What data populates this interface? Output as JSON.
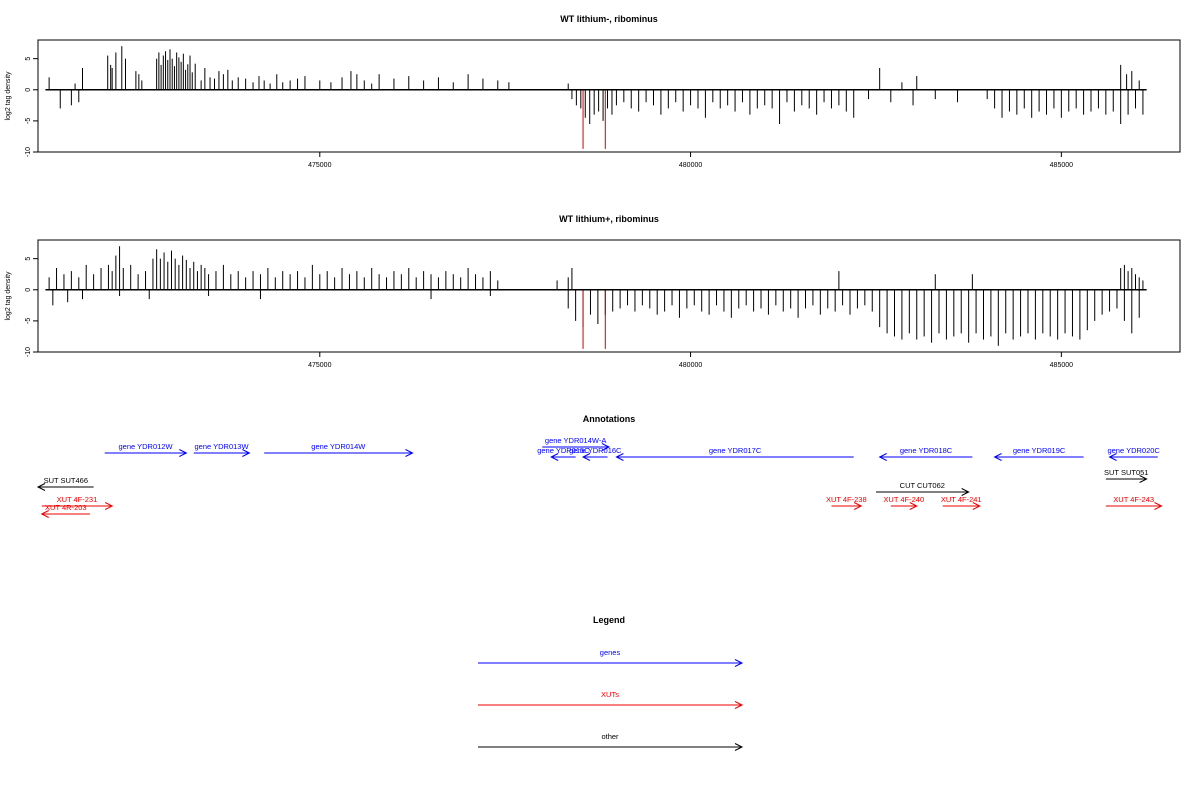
{
  "chart_data": [
    {
      "type": "bar",
      "title": "WT lithium-, ribominus",
      "ylabel": "log2 tag density",
      "xlabel": "",
      "xlim": [
        471200,
        486600
      ],
      "ylim": [
        -10,
        8
      ],
      "x_ticks": [
        475000,
        480000,
        485000
      ],
      "x_tick_labels": [
        "475000",
        "480000",
        "485000"
      ],
      "y_ticks": [
        -10,
        -5,
        0,
        5
      ],
      "y_tick_labels": [
        "-10",
        "-5",
        "0",
        "5"
      ],
      "baseline": [
        471300,
        486150
      ],
      "colors": {
        "bars": "#000000",
        "highlight": "#cc0000"
      },
      "plus_strand": {
        "x": [
          471350,
          471700,
          471800,
          472140,
          472180,
          472200,
          472250,
          472330,
          472380,
          472520,
          472560,
          472600,
          472800,
          472830,
          472860,
          472890,
          472920,
          472950,
          472980,
          473010,
          473040,
          473070,
          473100,
          473130,
          473160,
          473190,
          473220,
          473250,
          473280,
          473320,
          473400,
          473450,
          473520,
          473580,
          473640,
          473700,
          473760,
          473820,
          473900,
          474000,
          474100,
          474180,
          474250,
          474330,
          474420,
          474500,
          474600,
          474700,
          474800,
          475000,
          475150,
          475300,
          475420,
          475500,
          475600,
          475700,
          475800,
          476000,
          476200,
          476400,
          476600,
          476800,
          477000,
          477200,
          477400,
          477550,
          478350,
          482550,
          482850,
          483050,
          485800,
          485880,
          485950,
          486050
        ],
        "y": [
          2,
          1,
          3.5,
          5.5,
          4,
          3.5,
          6,
          7,
          5,
          3,
          2.5,
          1.5,
          5,
          6,
          4,
          5.5,
          6.2,
          4.8,
          6.5,
          5,
          3.8,
          6,
          5.2,
          4.5,
          5.8,
          3.2,
          4.1,
          5.5,
          2.8,
          4.2,
          1.5,
          3.5,
          2,
          1.8,
          3,
          2.5,
          3.2,
          1.5,
          2,
          1.8,
          1.2,
          2.2,
          1.5,
          1,
          2.5,
          1.2,
          1.5,
          1.8,
          2.2,
          1.5,
          1.2,
          2,
          3,
          2.5,
          1.5,
          1,
          2.5,
          1.8,
          2.2,
          1.5,
          2,
          1.2,
          2.5,
          1.8,
          1.5,
          1.2,
          1,
          3.5,
          1.2,
          2.2,
          4,
          2.5,
          3,
          1.5
        ]
      },
      "minus_strand": {
        "x": [
          471500,
          471650,
          471750,
          478400,
          478460,
          478520,
          478580,
          478640,
          478700,
          478760,
          478820,
          478880,
          478940,
          479000,
          479100,
          479200,
          479300,
          479400,
          479500,
          479600,
          479700,
          479800,
          479900,
          480000,
          480100,
          480200,
          480300,
          480400,
          480500,
          480600,
          480700,
          480800,
          480900,
          481000,
          481100,
          481200,
          481300,
          481400,
          481500,
          481600,
          481700,
          481800,
          481900,
          482000,
          482100,
          482200,
          482400,
          482700,
          483000,
          483300,
          483600,
          484000,
          484100,
          484200,
          484300,
          484400,
          484500,
          484600,
          484700,
          484800,
          484900,
          485000,
          485100,
          485200,
          485300,
          485400,
          485500,
          485600,
          485700,
          485800,
          485900,
          486000,
          486100
        ],
        "y": [
          -3,
          -2.5,
          -2,
          -1.5,
          -2.5,
          -3,
          -4.5,
          -5.5,
          -4,
          -3.5,
          -5,
          -3,
          -4,
          -2.5,
          -2,
          -3,
          -3.5,
          -2,
          -2.5,
          -4,
          -3,
          -2,
          -3.5,
          -2.5,
          -3,
          -4.5,
          -2,
          -3,
          -2.5,
          -3.5,
          -2,
          -4,
          -3,
          -2.5,
          -3,
          -5.5,
          -2,
          -3.5,
          -2.5,
          -3,
          -4,
          -2,
          -3,
          -2.5,
          -3.5,
          -4.5,
          -1.5,
          -2,
          -2.5,
          -1.5,
          -2,
          -1.5,
          -3,
          -4.5,
          -3.5,
          -4,
          -3,
          -4.5,
          -3.5,
          -4,
          -3,
          -4.5,
          -3.5,
          -3,
          -4,
          -3.5,
          -3,
          -4,
          -3.5,
          -5.5,
          -4,
          -3,
          -4
        ]
      },
      "highlight_bars": {
        "x": [
          478550,
          478850
        ],
        "y": [
          -9.5,
          -9.5
        ]
      }
    },
    {
      "type": "bar",
      "title": "WT lithium+, ribominus",
      "ylabel": "log2 tag density",
      "xlabel": "",
      "xlim": [
        471200,
        486600
      ],
      "ylim": [
        -10,
        8
      ],
      "x_ticks": [
        475000,
        480000,
        485000
      ],
      "x_tick_labels": [
        "475000",
        "480000",
        "485000"
      ],
      "y_ticks": [
        -10,
        -5,
        0,
        5
      ],
      "y_tick_labels": [
        "-10",
        "-5",
        "0",
        "5"
      ],
      "baseline": [
        471300,
        486150
      ],
      "colors": {
        "bars": "#000000",
        "highlight": "#cc0000"
      },
      "plus_strand": {
        "x": [
          471350,
          471450,
          471550,
          471650,
          471750,
          471850,
          471950,
          472050,
          472150,
          472200,
          472250,
          472300,
          472350,
          472450,
          472550,
          472650,
          472750,
          472800,
          472850,
          472900,
          472950,
          473000,
          473050,
          473100,
          473150,
          473200,
          473250,
          473300,
          473350,
          473400,
          473450,
          473500,
          473600,
          473700,
          473800,
          473900,
          474000,
          474100,
          474200,
          474300,
          474400,
          474500,
          474600,
          474700,
          474800,
          474900,
          475000,
          475100,
          475200,
          475300,
          475400,
          475500,
          475600,
          475700,
          475800,
          475900,
          476000,
          476100,
          476200,
          476300,
          476400,
          476500,
          476600,
          476700,
          476800,
          476900,
          477000,
          477100,
          477200,
          477300,
          477400,
          478200,
          478350,
          478400,
          482000,
          483300,
          483800,
          485800,
          485850,
          485900,
          485950,
          486000,
          486050,
          486100
        ],
        "y": [
          2,
          3.5,
          2.5,
          3,
          2,
          4,
          2.5,
          3.5,
          4,
          3,
          5.5,
          7,
          3.5,
          4,
          2.5,
          3,
          5,
          6.5,
          5,
          6,
          4.5,
          6.3,
          5,
          4,
          5.5,
          4.8,
          3.5,
          4.5,
          3,
          4,
          3.5,
          2.5,
          3,
          4,
          2.5,
          3,
          2,
          3,
          2.5,
          3.5,
          2,
          3,
          2.5,
          3,
          2,
          4,
          2.5,
          3,
          2,
          3.5,
          2.5,
          3,
          2,
          3.5,
          2.5,
          2,
          3,
          2.5,
          3.5,
          2,
          3,
          2.5,
          2,
          3,
          2.5,
          2,
          3.5,
          2.5,
          2,
          3,
          1.5,
          1.5,
          2,
          3.5,
          3,
          2.5,
          2.5,
          3.5,
          4,
          3,
          3.5,
          2.5,
          2,
          1.5
        ]
      },
      "minus_strand": {
        "x": [
          471400,
          471600,
          471800,
          472300,
          472700,
          473500,
          474200,
          476500,
          477300,
          478350,
          478450,
          478550,
          478650,
          478750,
          478850,
          478950,
          479050,
          479150,
          479250,
          479350,
          479450,
          479550,
          479650,
          479750,
          479850,
          479950,
          480050,
          480150,
          480250,
          480350,
          480450,
          480550,
          480650,
          480750,
          480850,
          480950,
          481050,
          481150,
          481250,
          481350,
          481450,
          481550,
          481650,
          481750,
          481850,
          481950,
          482050,
          482150,
          482250,
          482350,
          482450,
          482550,
          482650,
          482750,
          482850,
          482950,
          483050,
          483150,
          483250,
          483350,
          483450,
          483550,
          483650,
          483750,
          483850,
          483950,
          484050,
          484150,
          484250,
          484350,
          484450,
          484550,
          484650,
          484750,
          484850,
          484950,
          485050,
          485150,
          485250,
          485350,
          485450,
          485550,
          485650,
          485750,
          485850,
          485950,
          486050
        ],
        "y": [
          -2.5,
          -2,
          -1.5,
          -1,
          -1.5,
          -1,
          -1.5,
          -1.5,
          -1,
          -3,
          -5,
          -6,
          -4,
          -5.5,
          -4,
          -3.5,
          -3,
          -2.5,
          -3.5,
          -2.5,
          -3,
          -4,
          -3.5,
          -2.5,
          -4.5,
          -3,
          -2.5,
          -3.5,
          -4,
          -2.5,
          -3.5,
          -4.5,
          -3,
          -2.5,
          -3.5,
          -3,
          -4,
          -2.5,
          -3.5,
          -3,
          -4.5,
          -3,
          -2.5,
          -4,
          -3,
          -3.5,
          -2.5,
          -4,
          -3,
          -2.5,
          -3.5,
          -6,
          -7,
          -7.5,
          -8,
          -7,
          -8,
          -7.5,
          -8.5,
          -7,
          -8,
          -7.5,
          -7,
          -8.5,
          -7,
          -8,
          -7.5,
          -9,
          -7,
          -8,
          -7.5,
          -7,
          -8,
          -7,
          -7.5,
          -8,
          -7,
          -7.5,
          -8,
          -6.5,
          -5,
          -4,
          -3.5,
          -3,
          -5,
          -7,
          -4.5
        ]
      },
      "highlight_bars": {
        "x": [
          478550,
          478850
        ],
        "y": [
          -9.5,
          -9.5
        ]
      }
    }
  ],
  "annotations": {
    "title": "Annotations",
    "xlim": [
      471200,
      486600
    ],
    "features": [
      {
        "label": "gene YDR012W",
        "type": "gene",
        "strand": "+",
        "start": 472100,
        "end": 473200,
        "row": 0
      },
      {
        "label": "gene YDR013W",
        "type": "gene",
        "strand": "+",
        "start": 473300,
        "end": 474050,
        "row": 0
      },
      {
        "label": "gene YDR014W",
        "type": "gene",
        "strand": "+",
        "start": 474250,
        "end": 476250,
        "row": 0
      },
      {
        "label": "gene YDR014W-A",
        "type": "gene",
        "strand": "+",
        "start": 478000,
        "end": 478900,
        "row": -0.6
      },
      {
        "label": "gene YDR015C",
        "type": "gene",
        "strand": "-",
        "start": 478120,
        "end": 478450,
        "row": 0.4
      },
      {
        "label": "gene YDR016C",
        "type": "gene",
        "strand": "-",
        "start": 478550,
        "end": 478880,
        "row": 0.4
      },
      {
        "label": "gene YDR017C",
        "type": "gene",
        "strand": "-",
        "start": 479000,
        "end": 482200,
        "row": 0.4
      },
      {
        "label": "gene YDR018C",
        "type": "gene",
        "strand": "-",
        "start": 482550,
        "end": 483800,
        "row": 0.4
      },
      {
        "label": "gene YDR019C",
        "type": "gene",
        "strand": "-",
        "start": 484100,
        "end": 485300,
        "row": 0.4
      },
      {
        "label": "gene YDR020C",
        "type": "gene",
        "strand": "-",
        "start": 485650,
        "end": 486300,
        "row": 0.4
      },
      {
        "label": "SUT SUT466",
        "type": "other",
        "strand": "-",
        "start": 471200,
        "end": 471950,
        "row": 3.4
      },
      {
        "label": "SUT SUT051",
        "type": "other",
        "strand": "+",
        "start": 485600,
        "end": 486150,
        "row": 2.6
      },
      {
        "label": "CUT CUT062",
        "type": "other",
        "strand": "+",
        "start": 482500,
        "end": 483750,
        "row": 3.9
      },
      {
        "label": "XUT 4F-231",
        "type": "XUT",
        "strand": "+",
        "start": 471250,
        "end": 472200,
        "row": 5.3
      },
      {
        "label": "XUT 4R-203",
        "type": "XUT",
        "strand": "-",
        "start": 471250,
        "end": 471900,
        "row": 6.1
      },
      {
        "label": "XUT 4F-238",
        "type": "XUT",
        "strand": "+",
        "start": 481900,
        "end": 482300,
        "row": 5.3
      },
      {
        "label": "XUT 4F-240",
        "type": "XUT",
        "strand": "+",
        "start": 482700,
        "end": 483050,
        "row": 5.3
      },
      {
        "label": "XUT 4F-241",
        "type": "XUT",
        "strand": "+",
        "start": 483400,
        "end": 483900,
        "row": 5.3
      },
      {
        "label": "XUT 4F-243",
        "type": "XUT",
        "strand": "+",
        "start": 485600,
        "end": 486350,
        "row": 5.3
      }
    ]
  },
  "legend": {
    "title": "Legend",
    "items": [
      {
        "label": "genes",
        "type": "gene"
      },
      {
        "label": "XUTs",
        "type": "XUT"
      },
      {
        "label": "other",
        "type": "other"
      }
    ]
  },
  "colors": {
    "gene": "#0000ff",
    "XUT": "#ee0000",
    "other": "#000000"
  }
}
